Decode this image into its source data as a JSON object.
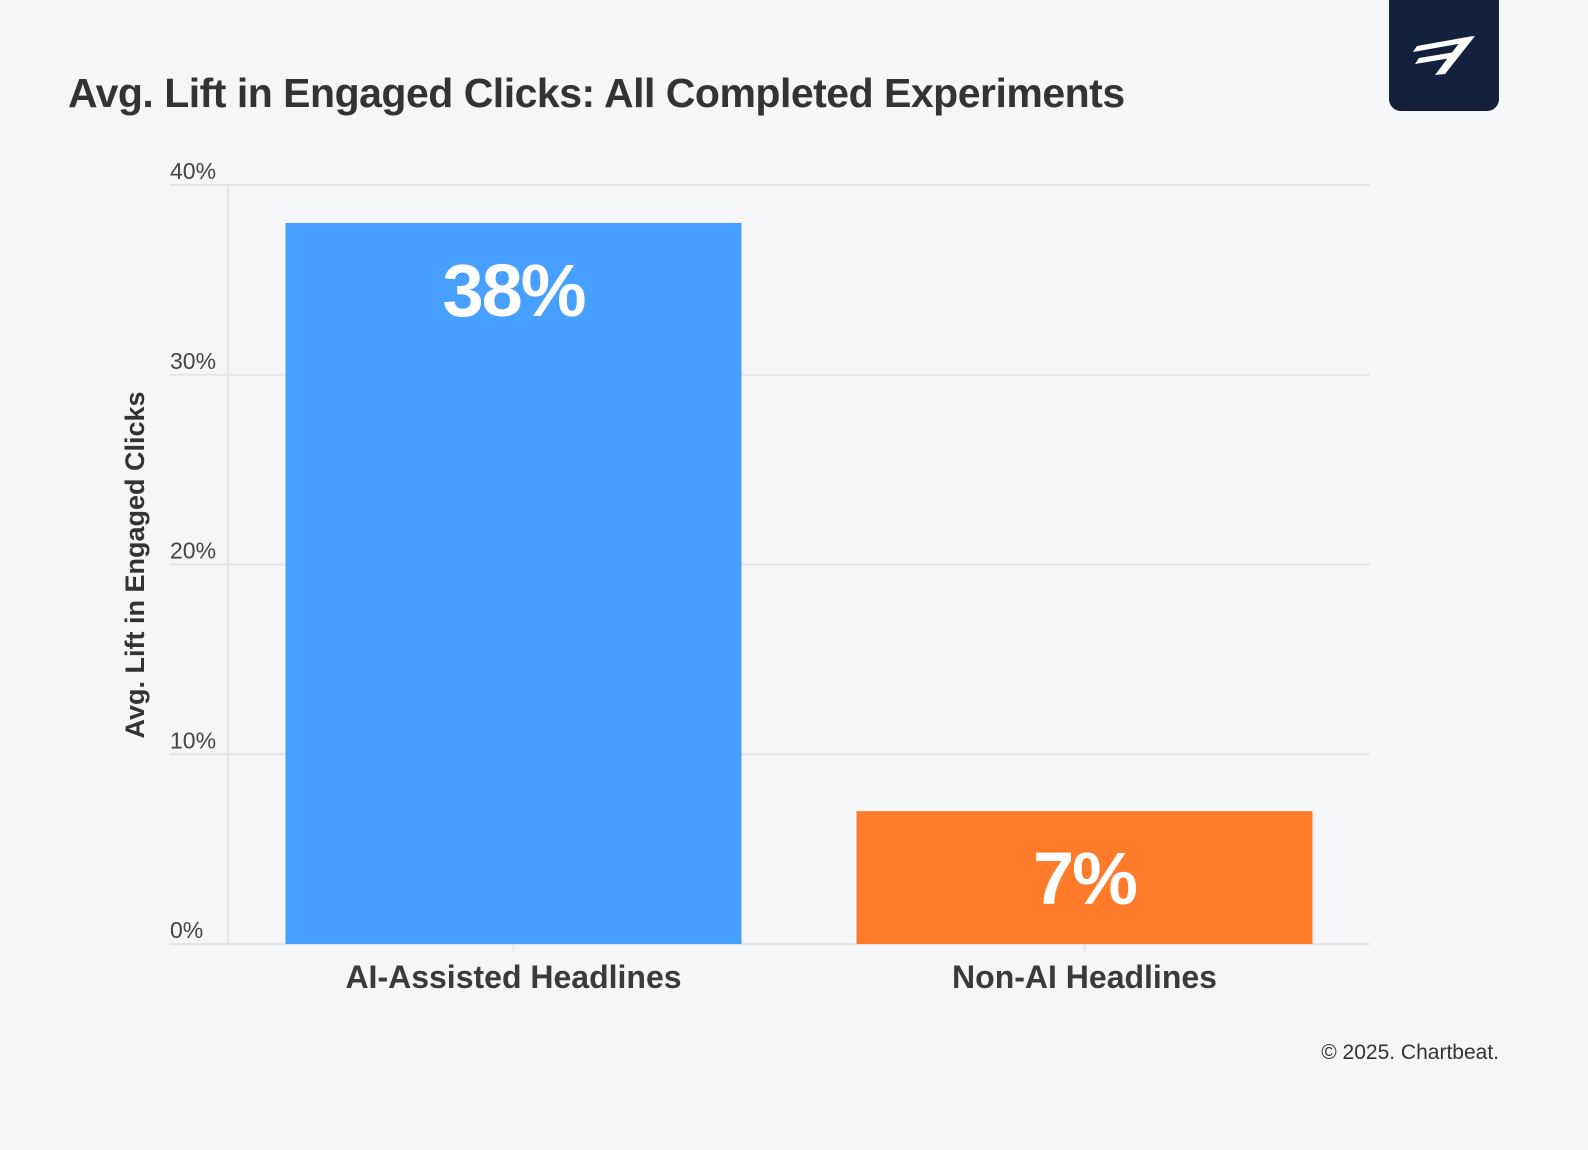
{
  "chart_data": {
    "type": "bar",
    "title": "Avg. Lift in Engaged Clicks: All Completed Experiments",
    "ylabel": "Avg. Lift in Engaged Clicks",
    "xlabel": "",
    "categories": [
      "AI-Assisted Headlines",
      "Non-AI Headlines"
    ],
    "values": [
      38,
      7
    ],
    "data_labels": [
      "38%",
      "7%"
    ],
    "colors": [
      "#47a0ff",
      "#ff7b2a"
    ],
    "ylim": [
      0,
      40
    ],
    "yticks": [
      0,
      10,
      20,
      30,
      40
    ],
    "ytick_labels": [
      "0%",
      "10%",
      "20%",
      "30%",
      "40%"
    ],
    "grid": true,
    "legend": "none"
  },
  "footer": {
    "copyright": "© 2025. Chartbeat."
  },
  "logo": {
    "icon": "chartbeat-logo-icon",
    "background": "#13223a"
  }
}
